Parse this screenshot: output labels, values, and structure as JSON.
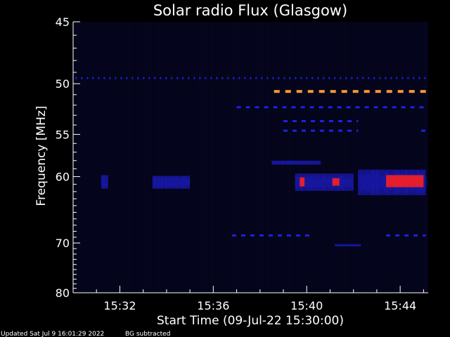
{
  "chart_data": {
    "type": "heatmap",
    "title": "Solar radio Flux (Glasgow)",
    "xlabel": "Start Time (09-Jul-22 15:30:00)",
    "ylabel": "Frequency [MHz]",
    "x_unit": "minutes after 15:30:00",
    "xlim": [
      0,
      15.2
    ],
    "ylim": [
      80,
      45
    ],
    "y_scale": "reciprocal",
    "x_ticks": [
      {
        "value": 2,
        "label": "15:32"
      },
      {
        "value": 6,
        "label": "15:36"
      },
      {
        "value": 10,
        "label": "15:40"
      },
      {
        "value": 14,
        "label": "15:44"
      }
    ],
    "y_ticks": [
      {
        "value": 45,
        "label": "45"
      },
      {
        "value": 50,
        "label": "50"
      },
      {
        "value": 55,
        "label": "55"
      },
      {
        "value": 60,
        "label": "60"
      },
      {
        "value": 70,
        "label": "70"
      },
      {
        "value": 80,
        "label": "80"
      }
    ],
    "background_color": "#04041a",
    "intensity_colors": {
      "low": "#2020e0",
      "mid": "#ff2020",
      "high": "#ff9a30"
    },
    "features": [
      {
        "kind": "dashed-line",
        "freq": 49.5,
        "t_start": 0.1,
        "t_end": 15.1,
        "intensity": "low"
      },
      {
        "kind": "dashed-line",
        "freq": 50.7,
        "t_start": 8.6,
        "t_end": 15.1,
        "intensity": "high"
      },
      {
        "kind": "dashed-line",
        "freq": 52.2,
        "t_start": 7.0,
        "t_end": 15.1,
        "intensity": "low"
      },
      {
        "kind": "dashed-line",
        "freq": 53.6,
        "t_start": 9.0,
        "t_end": 12.2,
        "intensity": "low"
      },
      {
        "kind": "dashed-line",
        "freq": 54.6,
        "t_start": 9.0,
        "t_end": 12.2,
        "intensity": "low"
      },
      {
        "kind": "dashed-line",
        "freq": 54.6,
        "t_start": 14.9,
        "t_end": 15.1,
        "intensity": "low"
      },
      {
        "kind": "dashed-line",
        "freq": 68.7,
        "t_start": 6.8,
        "t_end": 10.3,
        "intensity": "low"
      },
      {
        "kind": "dashed-line",
        "freq": 68.7,
        "t_start": 13.4,
        "t_end": 15.1,
        "intensity": "low"
      },
      {
        "kind": "burst",
        "freq_min": 59.8,
        "freq_max": 61.6,
        "t_start": 1.2,
        "t_end": 1.5,
        "intensity": "low"
      },
      {
        "kind": "burst",
        "freq_min": 59.9,
        "freq_max": 61.6,
        "t_start": 3.4,
        "t_end": 5.0,
        "intensity": "low"
      },
      {
        "kind": "burst",
        "freq_min": 59.6,
        "freq_max": 61.9,
        "t_start": 9.5,
        "t_end": 12.0,
        "intensity": "low"
      },
      {
        "kind": "burst",
        "freq_min": 59.1,
        "freq_max": 62.5,
        "t_start": 12.2,
        "t_end": 15.1,
        "intensity": "low"
      },
      {
        "kind": "burst",
        "freq_min": 60.1,
        "freq_max": 61.3,
        "t_start": 9.7,
        "t_end": 9.9,
        "intensity": "mid"
      },
      {
        "kind": "burst",
        "freq_min": 60.2,
        "freq_max": 61.2,
        "t_start": 11.1,
        "t_end": 11.4,
        "intensity": "mid"
      },
      {
        "kind": "burst",
        "freq_min": 59.8,
        "freq_max": 61.4,
        "t_start": 13.4,
        "t_end": 15.0,
        "intensity": "mid"
      },
      {
        "kind": "burst",
        "freq_min": 58.0,
        "freq_max": 58.5,
        "t_start": 8.5,
        "t_end": 10.6,
        "intensity": "low"
      },
      {
        "kind": "burst",
        "freq_min": 70.2,
        "freq_max": 70.6,
        "t_start": 11.2,
        "t_end": 12.3,
        "intensity": "low"
      }
    ]
  },
  "footer": {
    "updated": "Updated Sat Jul  9 16:01:29 2022",
    "note": "BG subtracted"
  }
}
